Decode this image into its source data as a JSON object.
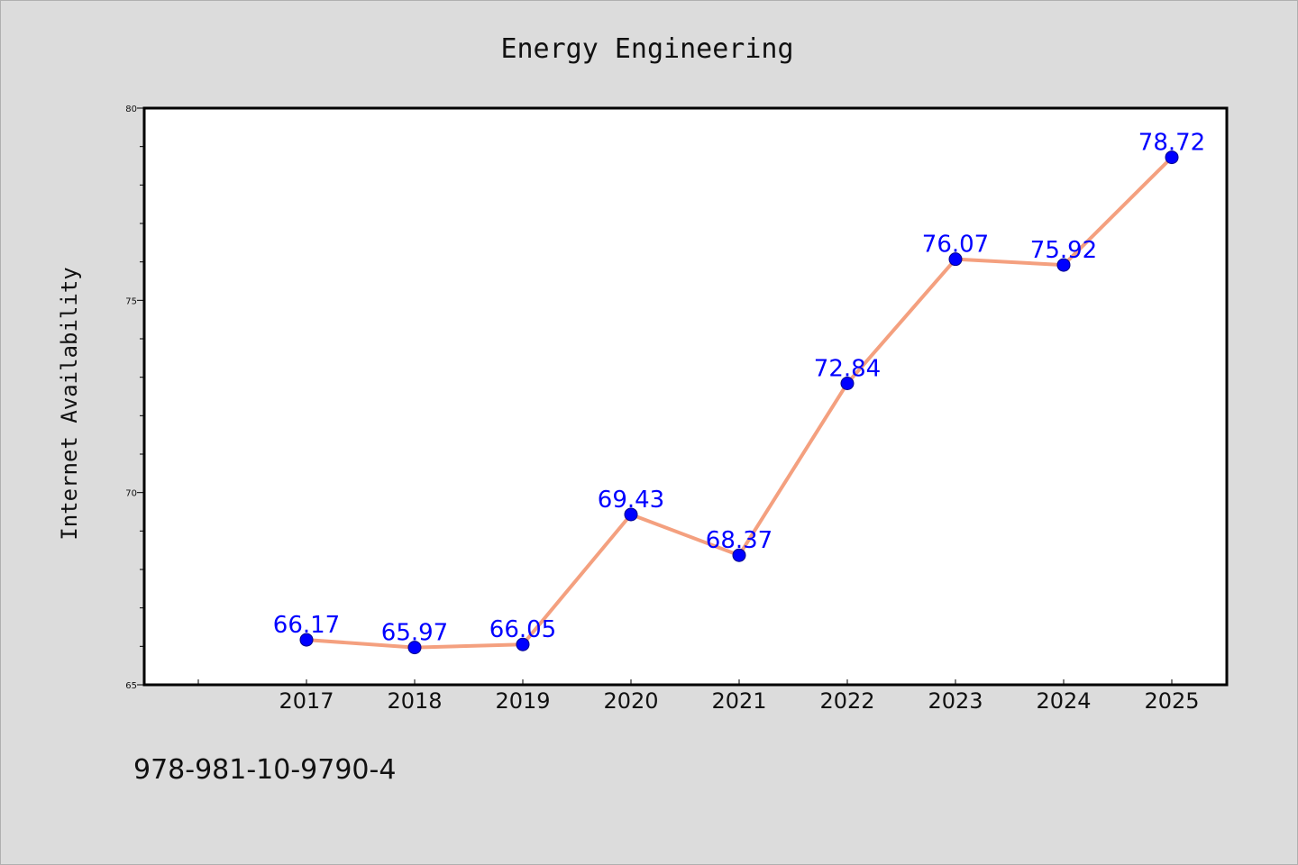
{
  "chart_data": {
    "type": "line",
    "title": "Energy Engineering",
    "xlabel": "",
    "ylabel": "Internet Availability",
    "categories": [
      "2017",
      "2018",
      "2019",
      "2020",
      "2021",
      "2022",
      "2023",
      "2024",
      "2025"
    ],
    "series": [
      {
        "values": [
          66.17,
          65.97,
          66.05,
          69.43,
          68.37,
          72.84,
          76.07,
          75.92,
          78.72
        ],
        "data_labels": [
          "66.17",
          "65.97",
          "66.05",
          "69.43",
          "68.37",
          "72.84",
          "76.07",
          "75.92",
          "78.72"
        ]
      }
    ],
    "ylim": [
      65,
      80
    ],
    "yticks": [
      "65",
      "70",
      "75",
      "80"
    ],
    "grid": false,
    "legend": "none",
    "colors": {
      "line": "#f4a07f",
      "marker": "#0000ff",
      "label": "#0000ff",
      "plot_background": "#ffffff",
      "figure_background": "#dcdcdc"
    }
  },
  "footer": {
    "text": "978-981-10-9790-4"
  }
}
